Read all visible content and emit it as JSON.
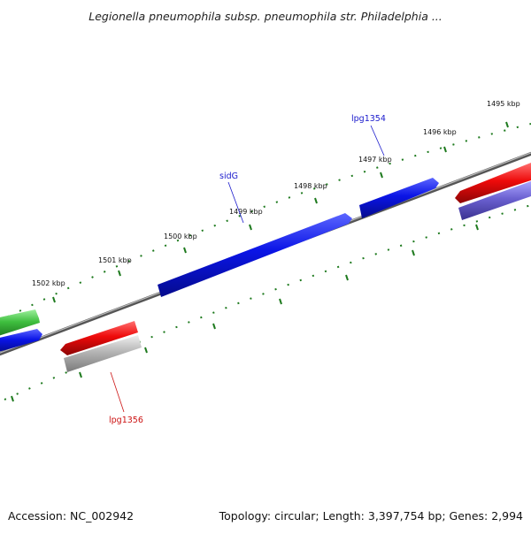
{
  "title": "Legionella pneumophila subsp. pneumophila str. Philadelphia ...",
  "footer": {
    "accession": "Accession: NC_002942",
    "summary": "Topology: circular; Length: 3,397,754 bp; Genes: 2,994"
  },
  "scale_labels": [
    "1495 kbp",
    "1496 kbp",
    "1497 kbp",
    "1498 kbp",
    "1499 kbp",
    "1500 kbp",
    "1501 kbp",
    "1502 kbp"
  ],
  "gene_labels": {
    "lpg1354": "lpg1354",
    "sidG": "sidG",
    "lpg1356": "lpg1356"
  },
  "colors": {
    "forward_gene": "#0a14e6",
    "reverse_gene": "#ee0a0a",
    "green_feature": "#3fbf3f",
    "gray_feature": "#b5b5b5",
    "lavender_feature": "#6a60d0",
    "backbone": "#777777",
    "tick": "#1e7a1e",
    "label_blue": "#1a1acc",
    "label_red": "#cc1111"
  }
}
